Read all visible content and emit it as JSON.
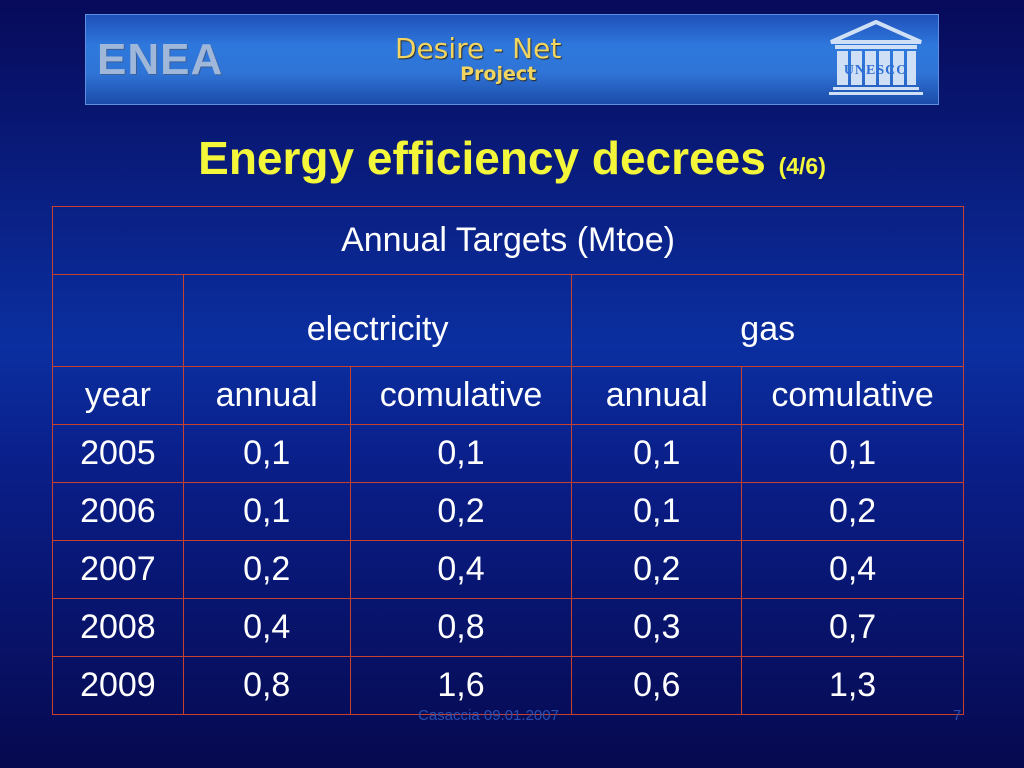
{
  "banner": {
    "logo_left": "ENEA",
    "project_title": "Desire - Net",
    "project_subtitle": "Project",
    "logo_right": "UNESCO"
  },
  "slide": {
    "title": "Energy efficiency decrees",
    "title_suffix": "(4/6)"
  },
  "table": {
    "caption": "Annual Targets (Mtoe)",
    "groups": [
      "electricity",
      "gas"
    ],
    "columns": [
      "year",
      "annual",
      "comulative",
      "annual",
      "comulative"
    ],
    "rows": [
      [
        "2005",
        "0,1",
        "0,1",
        "0,1",
        "0,1"
      ],
      [
        "2006",
        "0,1",
        "0,2",
        "0,1",
        "0,2"
      ],
      [
        "2007",
        "0,2",
        "0,4",
        "0,2",
        "0,4"
      ],
      [
        "2008",
        "0,4",
        "0,8",
        "0,3",
        "0,7"
      ],
      [
        "2009",
        "0,8",
        "1,6",
        "0,6",
        "1,3"
      ]
    ]
  },
  "footer": {
    "date": "Casaccia 09.01.2007",
    "page_number": "7"
  },
  "colors": {
    "background": "#0a1f8a",
    "title": "#f4f63a",
    "table_border": "#c8402e",
    "table_text": "#ffffff",
    "banner": "#2e78dd"
  }
}
